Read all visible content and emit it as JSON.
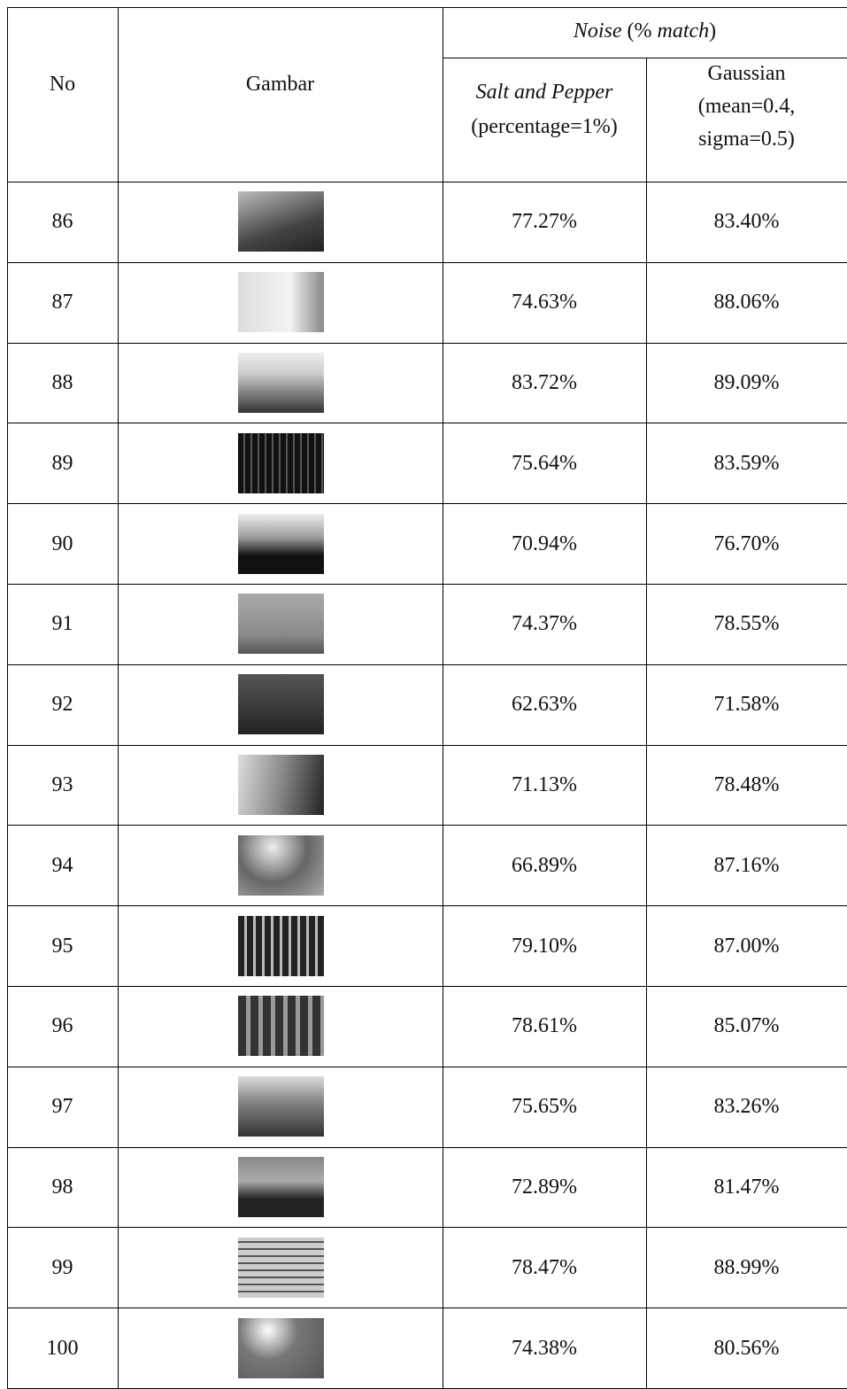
{
  "header": {
    "no": "No",
    "image": "Gambar",
    "noise": [
      "Noise",
      " (% ",
      "match",
      ")"
    ],
    "salt": [
      "Salt and Pepper",
      "(percentage=1%)"
    ],
    "gaussian": [
      "Gaussian",
      "(mean=0.4,",
      "sigma=0.5)"
    ]
  },
  "table": {
    "rows": [
      [
        "86",
        "77.27%",
        "83.40%"
      ],
      [
        "87",
        "74.63%",
        "88.06%"
      ],
      [
        "88",
        "83.72%",
        "89.09%"
      ],
      [
        "89",
        "75.64%",
        "83.59%"
      ],
      [
        "90",
        "70.94%",
        "76.70%"
      ],
      [
        "91",
        "74.37%",
        "78.55%"
      ],
      [
        "92",
        "62.63%",
        "71.58%"
      ],
      [
        "93",
        "71.13%",
        "78.48%"
      ],
      [
        "94",
        "66.89%",
        "87.16%"
      ],
      [
        "95",
        "79.10%",
        "87.00%"
      ],
      [
        "96",
        "78.61%",
        "85.07%"
      ],
      [
        "97",
        "75.65%",
        "83.26%"
      ],
      [
        "98",
        "72.89%",
        "81.47%"
      ],
      [
        "99",
        "78.47%",
        "88.99%"
      ],
      [
        "100",
        "74.38%",
        "80.56%"
      ]
    ]
  }
}
